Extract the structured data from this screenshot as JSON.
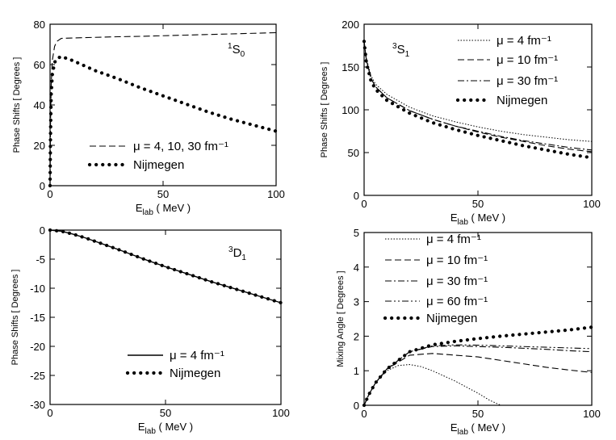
{
  "chart_data": [
    {
      "type": "line",
      "panel": "top-left",
      "annotation": {
        "sup": "1",
        "main": "S",
        "sub": "0"
      },
      "xlabel": {
        "main": "E",
        "sub": "lab",
        "rest": " ( MeV )"
      },
      "ylabel": "Phase Shifts [ Degrees ]",
      "xlim": [
        0,
        100
      ],
      "ylim": [
        0,
        80
      ],
      "xticks": [
        "0",
        "50",
        "100"
      ],
      "yticks": [
        "0",
        "20",
        "40",
        "60",
        "80"
      ],
      "legend": [
        {
          "label": "μ = 4, 10, 30 fm⁻¹",
          "style": "dashed"
        },
        {
          "label": "Nijmegen",
          "style": "dotted-bold"
        }
      ],
      "series": [
        {
          "name": "μ = 4, 10, 30 fm⁻¹",
          "style": "dashed",
          "x": [
            0,
            0.2,
            0.5,
            1,
            2,
            3,
            5,
            10,
            20,
            30,
            40,
            50,
            60,
            70,
            80,
            90,
            100
          ],
          "y": [
            0,
            30,
            50,
            62,
            69,
            71.5,
            73,
            73.2,
            73.5,
            73.8,
            74,
            74.3,
            74.6,
            74.9,
            75.2,
            75.5,
            75.8
          ]
        },
        {
          "name": "Nijmegen",
          "style": "dotted-bold",
          "x": [
            0,
            0.2,
            0.5,
            1,
            2,
            3,
            5,
            10,
            20,
            30,
            40,
            50,
            60,
            70,
            80,
            90,
            100
          ],
          "y": [
            0,
            25,
            45,
            55,
            61,
            63,
            64,
            62,
            57,
            53,
            48.5,
            44.5,
            40.5,
            36.5,
            33,
            30,
            27
          ]
        }
      ]
    },
    {
      "type": "line",
      "panel": "top-right",
      "annotation": {
        "sup": "3",
        "main": "S",
        "sub": "1"
      },
      "xlabel": {
        "main": "E",
        "sub": "lab",
        "rest": " ( MeV )"
      },
      "ylabel": "Phase Shifts [ Degrees ]",
      "xlim": [
        0,
        100
      ],
      "ylim": [
        0,
        200
      ],
      "xticks": [
        "0",
        "50",
        "100"
      ],
      "yticks": [
        "0",
        "50",
        "100",
        "150",
        "200"
      ],
      "legend": [
        {
          "label": "μ = 4 fm⁻¹",
          "style": "dotted"
        },
        {
          "label": "μ = 10 fm⁻¹",
          "style": "dashed"
        },
        {
          "label": "μ = 30 fm⁻¹",
          "style": "dashdot"
        },
        {
          "label": "Nijmegen",
          "style": "dotted-bold"
        }
      ],
      "series": [
        {
          "name": "μ = 4 fm⁻¹",
          "style": "dotted",
          "x": [
            0,
            1,
            3,
            5,
            10,
            20,
            30,
            40,
            50,
            60,
            70,
            80,
            90,
            100
          ],
          "y": [
            180,
            160,
            140,
            130,
            118,
            103,
            93,
            86,
            80,
            75,
            71,
            68,
            65,
            63
          ]
        },
        {
          "name": "μ = 10 fm⁻¹",
          "style": "dashed",
          "x": [
            0,
            1,
            3,
            5,
            10,
            20,
            30,
            40,
            50,
            60,
            70,
            80,
            90,
            100
          ],
          "y": [
            180,
            158,
            137,
            127,
            114,
            99,
            89,
            81,
            74,
            68,
            63,
            58,
            54,
            51
          ]
        },
        {
          "name": "μ = 30 fm⁻¹",
          "style": "dashdot",
          "x": [
            0,
            1,
            3,
            5,
            10,
            20,
            30,
            40,
            50,
            60,
            70,
            80,
            90,
            100
          ],
          "y": [
            180,
            158,
            137,
            127,
            114,
            99,
            89,
            81,
            75,
            69,
            64,
            60,
            56,
            53
          ]
        },
        {
          "name": "Nijmegen",
          "style": "dotted-bold",
          "x": [
            0,
            1,
            3,
            5,
            10,
            20,
            30,
            40,
            50,
            60,
            70,
            80,
            90,
            100
          ],
          "y": [
            180,
            155,
            134,
            124,
            111,
            96,
            85,
            77,
            70,
            64,
            58,
            53,
            48,
            44
          ]
        }
      ]
    },
    {
      "type": "line",
      "panel": "bottom-left",
      "annotation": {
        "sup": "3",
        "main": "D",
        "sub": "1"
      },
      "xlabel": {
        "main": "E",
        "sub": "lab",
        "rest": " ( MeV )"
      },
      "ylabel": "Phase Shifts [ Degrees ]",
      "xlim": [
        0,
        100
      ],
      "ylim": [
        -30,
        0
      ],
      "xticks": [
        "0",
        "50",
        "100"
      ],
      "yticks": [
        "-30",
        "-25",
        "-20",
        "-15",
        "-10",
        "-5",
        "0"
      ],
      "legend": [
        {
          "label": "μ = 4 fm⁻¹",
          "style": "solid"
        },
        {
          "label": "Nijmegen",
          "style": "dotted-bold"
        }
      ],
      "series": [
        {
          "name": "μ = 4 fm⁻¹",
          "style": "solid",
          "x": [
            0,
            5,
            10,
            15,
            20,
            30,
            40,
            50,
            60,
            70,
            80,
            90,
            100
          ],
          "y": [
            0,
            -0.2,
            -0.7,
            -1.3,
            -2.0,
            -3.4,
            -4.9,
            -6.3,
            -7.6,
            -8.9,
            -10.1,
            -11.3,
            -12.5
          ]
        },
        {
          "name": "Nijmegen",
          "style": "dotted-bold",
          "x": [
            0,
            5,
            10,
            15,
            20,
            30,
            40,
            50,
            60,
            70,
            80,
            90,
            100
          ],
          "y": [
            0,
            -0.2,
            -0.7,
            -1.3,
            -2.0,
            -3.4,
            -4.9,
            -6.3,
            -7.6,
            -8.9,
            -10.1,
            -11.3,
            -12.5
          ]
        }
      ]
    },
    {
      "type": "line",
      "panel": "bottom-right",
      "xlabel": {
        "main": "E",
        "sub": "lab",
        "rest": " ( MeV )"
      },
      "ylabel": "Mixing Angle [ Degrees ]",
      "xlim": [
        0,
        100
      ],
      "ylim": [
        0,
        5
      ],
      "xticks": [
        "0",
        "50",
        "100"
      ],
      "yticks": [
        "0",
        "1",
        "2",
        "3",
        "4",
        "5"
      ],
      "legend": [
        {
          "label": "μ = 4 fm⁻¹",
          "style": "dotted"
        },
        {
          "label": "μ = 10 fm⁻¹",
          "style": "dashed"
        },
        {
          "label": "μ = 30 fm⁻¹",
          "style": "dashdot"
        },
        {
          "label": "μ = 60 fm⁻¹",
          "style": "dashdotdot"
        },
        {
          "label": "Nijmegen",
          "style": "dotted-bold"
        }
      ],
      "series": [
        {
          "name": "μ = 4 fm⁻¹",
          "style": "dotted",
          "x": [
            0,
            2,
            5,
            10,
            15,
            20,
            25,
            30,
            40,
            50,
            55,
            60
          ],
          "y": [
            0,
            0.3,
            0.65,
            1.0,
            1.15,
            1.18,
            1.12,
            1.0,
            0.7,
            0.35,
            0.15,
            0.0
          ]
        },
        {
          "name": "μ = 10 fm⁻¹",
          "style": "dashed",
          "x": [
            0,
            2,
            5,
            10,
            20,
            30,
            40,
            50,
            60,
            70,
            80,
            90,
            100
          ],
          "y": [
            0,
            0.3,
            0.65,
            1.05,
            1.45,
            1.5,
            1.45,
            1.4,
            1.3,
            1.2,
            1.1,
            1.02,
            0.95
          ]
        },
        {
          "name": "μ = 30 fm⁻¹",
          "style": "dashdot",
          "x": [
            0,
            2,
            5,
            10,
            20,
            30,
            40,
            50,
            60,
            70,
            80,
            90,
            100
          ],
          "y": [
            0,
            0.3,
            0.65,
            1.05,
            1.55,
            1.7,
            1.72,
            1.7,
            1.68,
            1.65,
            1.62,
            1.58,
            1.55
          ]
        },
        {
          "name": "μ = 60 fm⁻¹",
          "style": "dashdotdot",
          "x": [
            0,
            2,
            5,
            10,
            20,
            30,
            40,
            50,
            60,
            70,
            80,
            90,
            100
          ],
          "y": [
            0,
            0.3,
            0.65,
            1.05,
            1.55,
            1.72,
            1.75,
            1.74,
            1.72,
            1.7,
            1.68,
            1.66,
            1.64
          ]
        },
        {
          "name": "Nijmegen",
          "style": "dotted-bold",
          "x": [
            0,
            2,
            5,
            10,
            20,
            30,
            40,
            50,
            60,
            70,
            80,
            90,
            100
          ],
          "y": [
            0,
            0.3,
            0.65,
            1.05,
            1.55,
            1.75,
            1.85,
            1.93,
            2.0,
            2.06,
            2.12,
            2.18,
            2.26
          ]
        }
      ]
    }
  ]
}
